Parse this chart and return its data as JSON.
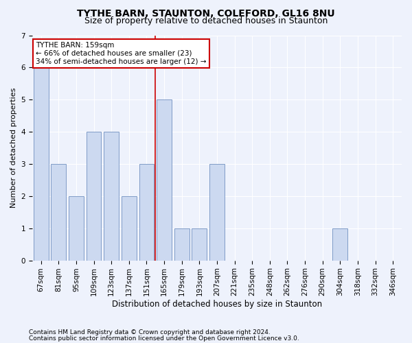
{
  "title": "TYTHE BARN, STAUNTON, COLEFORD, GL16 8NU",
  "subtitle": "Size of property relative to detached houses in Staunton",
  "xlabel": "Distribution of detached houses by size in Staunton",
  "ylabel": "Number of detached properties",
  "categories": [
    "67sqm",
    "81sqm",
    "95sqm",
    "109sqm",
    "123sqm",
    "137sqm",
    "151sqm",
    "165sqm",
    "179sqm",
    "193sqm",
    "207sqm",
    "221sqm",
    "235sqm",
    "248sqm",
    "262sqm",
    "276sqm",
    "290sqm",
    "304sqm",
    "318sqm",
    "332sqm",
    "346sqm"
  ],
  "values": [
    6,
    3,
    2,
    4,
    4,
    2,
    3,
    5,
    1,
    1,
    3,
    0,
    0,
    0,
    0,
    0,
    0,
    1,
    0,
    0,
    0
  ],
  "bar_color": "#ccd9f0",
  "bar_edge_color": "#7090c0",
  "property_line_color": "#cc0000",
  "property_line_index": 6.5,
  "annotation_text_line1": "TYTHE BARN: 159sqm",
  "annotation_text_line2": "← 66% of detached houses are smaller (23)",
  "annotation_text_line3": "34% of semi-detached houses are larger (12) →",
  "annotation_box_color": "#ffffff",
  "annotation_box_edge": "#cc0000",
  "ylim": [
    0,
    7
  ],
  "yticks": [
    0,
    1,
    2,
    3,
    4,
    5,
    6,
    7
  ],
  "footer1": "Contains HM Land Registry data © Crown copyright and database right 2024.",
  "footer2": "Contains public sector information licensed under the Open Government Licence v3.0.",
  "bg_color": "#eef2fc",
  "plot_bg_color": "#eef2fc",
  "grid_color": "#ffffff",
  "title_fontsize": 10,
  "subtitle_fontsize": 9,
  "xlabel_fontsize": 8.5,
  "ylabel_fontsize": 8,
  "tick_fontsize": 7.5,
  "annotation_fontsize": 7.5,
  "footer_fontsize": 6.5
}
